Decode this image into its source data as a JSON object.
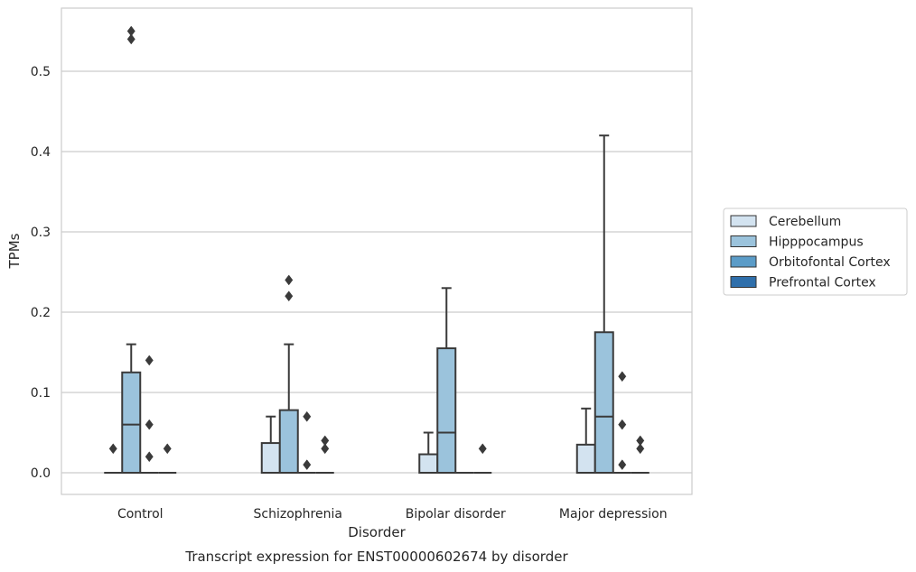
{
  "chart_data": {
    "type": "boxplot",
    "caption": "Transcript expression for ENST00000602674 by disorder",
    "xlabel": "Disorder",
    "ylabel": "TPMs",
    "ylim": [
      -0.027,
      0.58
    ],
    "yticks": [
      0.0,
      0.1,
      0.2,
      0.3,
      0.4,
      0.5
    ],
    "ytick_labels": [
      "0.0",
      "0.1",
      "0.2",
      "0.3",
      "0.4",
      "0.5"
    ],
    "grid": true,
    "legend_position": "right",
    "categories": [
      "Control",
      "Schizophrenia",
      "Bipolar disorder",
      "Major depression"
    ],
    "series": [
      {
        "name": "Cerebellum",
        "color": "#d3e3f0",
        "boxes": [
          {
            "q1": 0.0,
            "median": 0.0,
            "q3": 0.0,
            "whislo": 0.0,
            "whishi": 0.0,
            "fliers": [
              0.03
            ]
          },
          {
            "q1": 0.0,
            "median": 0.0,
            "q3": 0.037,
            "whislo": 0.0,
            "whishi": 0.07,
            "fliers": []
          },
          {
            "q1": 0.0,
            "median": 0.0,
            "q3": 0.023,
            "whislo": 0.0,
            "whishi": 0.05,
            "fliers": []
          },
          {
            "q1": 0.0,
            "median": 0.0,
            "q3": 0.035,
            "whislo": 0.0,
            "whishi": 0.08,
            "fliers": []
          }
        ]
      },
      {
        "name": "Hipppocampus",
        "color": "#9bc3dc",
        "boxes": [
          {
            "q1": 0.0,
            "median": 0.06,
            "q3": 0.125,
            "whislo": 0.0,
            "whishi": 0.16,
            "fliers": [
              0.54,
              0.55
            ]
          },
          {
            "q1": 0.0,
            "median": 0.0,
            "q3": 0.078,
            "whislo": 0.0,
            "whishi": 0.16,
            "fliers": [
              0.22,
              0.24
            ]
          },
          {
            "q1": 0.0,
            "median": 0.05,
            "q3": 0.155,
            "whislo": 0.0,
            "whishi": 0.23,
            "fliers": []
          },
          {
            "q1": 0.0,
            "median": 0.07,
            "q3": 0.175,
            "whislo": 0.0,
            "whishi": 0.42,
            "fliers": []
          }
        ]
      },
      {
        "name": "Orbitofontal Cortex",
        "color": "#5b9cc8",
        "boxes": [
          {
            "q1": 0.0,
            "median": 0.0,
            "q3": 0.0,
            "whislo": 0.0,
            "whishi": 0.0,
            "fliers": [
              0.02,
              0.06,
              0.14
            ]
          },
          {
            "q1": 0.0,
            "median": 0.0,
            "q3": 0.0,
            "whislo": 0.0,
            "whishi": 0.0,
            "fliers": [
              0.01,
              0.07
            ]
          },
          {
            "q1": 0.0,
            "median": 0.0,
            "q3": 0.0,
            "whislo": 0.0,
            "whishi": 0.0,
            "fliers": []
          },
          {
            "q1": 0.0,
            "median": 0.0,
            "q3": 0.0,
            "whislo": 0.0,
            "whishi": 0.0,
            "fliers": [
              0.01,
              0.06,
              0.12
            ]
          }
        ]
      },
      {
        "name": "Prefrontal Cortex",
        "color": "#2f6fab",
        "boxes": [
          {
            "q1": 0.0,
            "median": 0.0,
            "q3": 0.0,
            "whislo": 0.0,
            "whishi": 0.0,
            "fliers": [
              0.03
            ]
          },
          {
            "q1": 0.0,
            "median": 0.0,
            "q3": 0.0,
            "whislo": 0.0,
            "whishi": 0.0,
            "fliers": [
              0.03,
              0.04
            ]
          },
          {
            "q1": 0.0,
            "median": 0.0,
            "q3": 0.0,
            "whislo": 0.0,
            "whishi": 0.0,
            "fliers": [
              0.03
            ]
          },
          {
            "q1": 0.0,
            "median": 0.0,
            "q3": 0.0,
            "whislo": 0.0,
            "whishi": 0.0,
            "fliers": [
              0.03,
              0.04
            ]
          }
        ]
      }
    ]
  }
}
